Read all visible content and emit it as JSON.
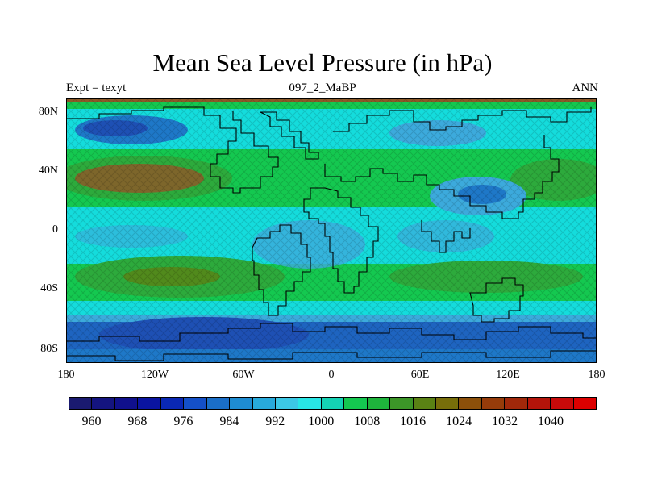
{
  "title": "Mean Sea Level Pressure (in hPa)",
  "subtitle_left": "Expt = texyt",
  "subtitle_center": "097_2_MaBP",
  "subtitle_right": "ANN",
  "lat_ticks": [
    "80N",
    "40N",
    "0",
    "40S",
    "80S"
  ],
  "lon_ticks": [
    "180",
    "120W",
    "60W",
    "0",
    "60E",
    "120E",
    "180"
  ],
  "colorbar": {
    "labels": [
      "960",
      "968",
      "976",
      "984",
      "992",
      "1000",
      "1008",
      "1016",
      "1024",
      "1032",
      "1040"
    ],
    "colors": [
      "#1a1a70",
      "#141480",
      "#10108c",
      "#0a14a0",
      "#0a28b4",
      "#1450c8",
      "#1a6ec8",
      "#1e8cd2",
      "#28aadc",
      "#3cc8e6",
      "#28e6e6",
      "#14d2b4",
      "#14c850",
      "#1eb43c",
      "#3c9628",
      "#5a8214",
      "#786e0a",
      "#8c500a",
      "#963c0a",
      "#a0280a",
      "#b4140a",
      "#c80a0a",
      "#dc0000"
    ]
  },
  "colors": {
    "deep_blue": "#1e50b4",
    "mid_blue": "#1e78c8",
    "light_blue": "#3caadc",
    "cyan": "#14dcdc",
    "green": "#14c850",
    "dark_green": "#2daa3c",
    "brown": "#8c5a28",
    "coast": "#000000"
  }
}
